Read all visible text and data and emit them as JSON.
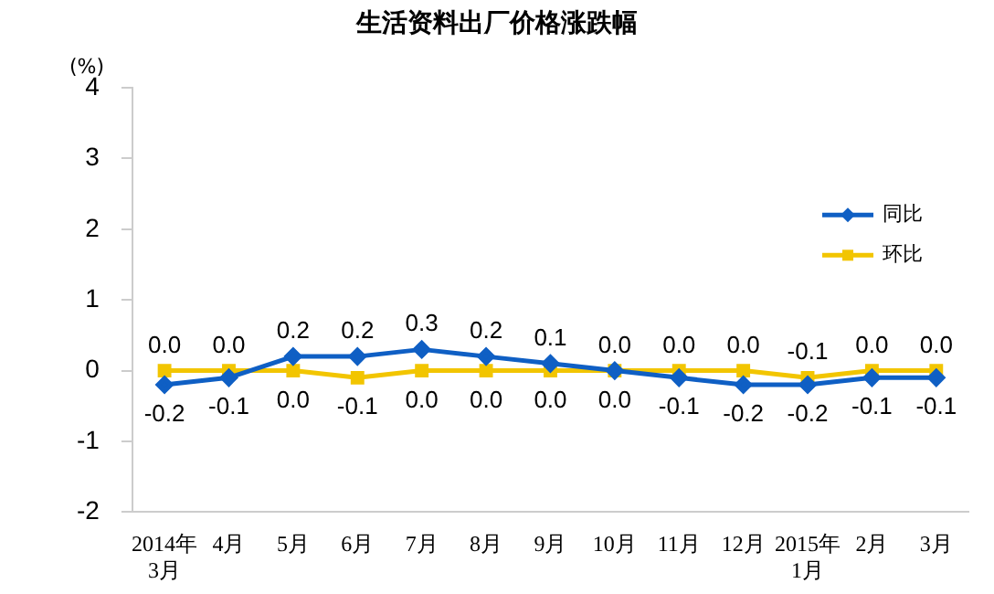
{
  "chart_data": {
    "type": "line",
    "title": "生活资料出厂价格涨跌幅",
    "ylabel": "(%)",
    "categories": [
      "2014年\n3月",
      "4月",
      "5月",
      "6月",
      "7月",
      "8月",
      "9月",
      "10月",
      "11月",
      "12月",
      "2015年\n1月",
      "2月",
      "3月"
    ],
    "series": [
      {
        "name": "同比",
        "color": "#0f5fc4",
        "marker": "diamond",
        "values": [
          -0.2,
          -0.1,
          0.2,
          0.2,
          0.3,
          0.2,
          0.1,
          0.0,
          -0.1,
          -0.2,
          -0.2,
          -0.1,
          -0.1
        ],
        "value_labels": [
          "-0.2",
          "-0.1",
          "0.2",
          "0.2",
          "0.3",
          "0.2",
          "0.1",
          "0.0",
          "-0.1",
          "-0.2",
          "-0.2",
          "-0.1",
          "-0.1"
        ]
      },
      {
        "name": "环比",
        "color": "#f2c500",
        "marker": "square",
        "values": [
          0.0,
          0.0,
          0.0,
          -0.1,
          0.0,
          0.0,
          0.0,
          0.0,
          0.0,
          0.0,
          -0.1,
          0.0,
          0.0
        ],
        "value_labels": [
          "0.0",
          "0.0",
          "0.0",
          "-0.1",
          "0.0",
          "0.0",
          "0.0",
          "0.0",
          "0.0",
          "0.0",
          "-0.1",
          "0.0",
          "0.0"
        ]
      }
    ],
    "ylim": [
      -2,
      4
    ],
    "yticks": [
      -2,
      -1,
      0,
      1,
      2,
      3,
      4
    ],
    "grid": false,
    "legend": "right"
  }
}
